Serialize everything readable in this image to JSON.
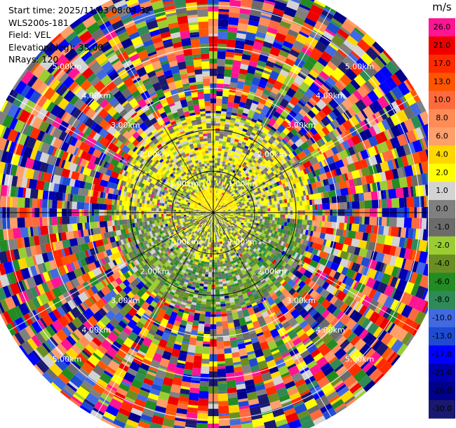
{
  "header": {
    "start_time": "Start time: 2025/11/03 08:04:32",
    "instrument": "WLS200s-181",
    "field": "Field: VEL",
    "elevation": "Elevation(deg): 35.00",
    "nrays": "NRays: 120"
  },
  "chart_data": {
    "type": "heatmap",
    "projection": "polar-ppi",
    "field": "VEL",
    "units": "m/s",
    "n_rays": 120,
    "range_rings_km": [
      1,
      2,
      3,
      4,
      5
    ],
    "ring_labels": {
      "1": "1.00km",
      "2": "2.00km",
      "3": "3.00km",
      "4": "4.00km",
      "5": "5.00km"
    },
    "max_range_km": 5.7,
    "colorbar": {
      "unit_label": "m/s",
      "ticks": [
        "26.0",
        "21.0",
        "17.0",
        "13.0",
        "10.0",
        "8.0",
        "6.0",
        "4.0",
        "2.0",
        "1.0",
        "0.0",
        "-1.0",
        "-2.0",
        "-4.0",
        "-6.0",
        "-8.0",
        "-10.0",
        "-13.0",
        "-17.0",
        "-21.0",
        "-26.0",
        "-30.0"
      ],
      "colors": [
        "#ff1493",
        "#ee0000",
        "#ff2a00",
        "#ff5500",
        "#ff6a3d",
        "#ff8c57",
        "#ff9f6a",
        "#ffd700",
        "#ffff00",
        "#d3d3d3",
        "#808080",
        "#6b6b6b",
        "#9acd32",
        "#6b8e23",
        "#228b22",
        "#2e8b57",
        "#4169e1",
        "#1e4bd2",
        "#0000ff",
        "#0000b0",
        "#00008b",
        "#191970"
      ]
    },
    "data_summary": {
      "near_range_km": [
        0,
        1.2
      ],
      "near_pattern": "yellow and olive (about -2 to 4 m/s) with grey speckle",
      "mid_range_km": [
        1.2,
        2.4
      ],
      "mid_pattern": "yellow to the north, grey and green to the south (about -6 to 4 m/s)",
      "far_range_km": [
        2.4,
        5.7
      ],
      "far_pattern": "random noise across the full colour scale"
    }
  }
}
